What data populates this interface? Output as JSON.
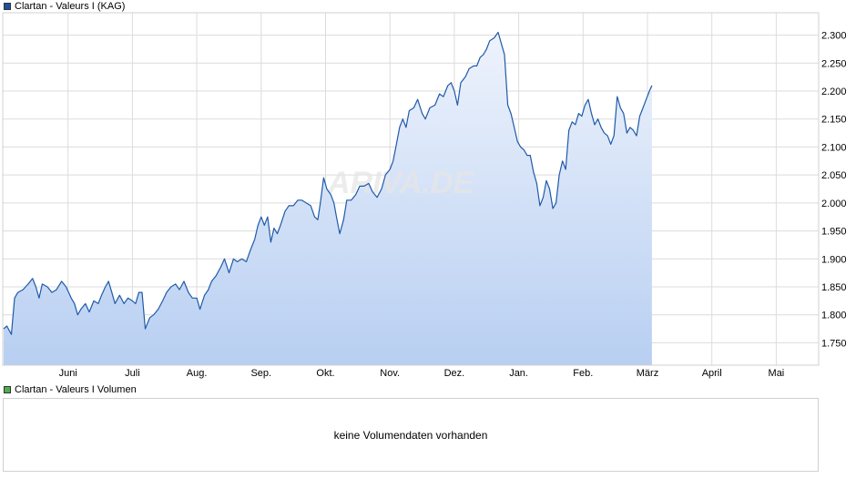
{
  "legend_price": {
    "label": "Clartan - Valeurs I (KAG)",
    "color": "#1f4e9e"
  },
  "legend_volume": {
    "label": "Clartan - Valeurs I Volumen",
    "color": "#4caf50"
  },
  "watermark": "ARIVA.DE",
  "volume_message": "keine Volumendaten vorhanden",
  "colors": {
    "line": "#1f5aa8",
    "fill_top": "#eef3fc",
    "fill_bottom": "#b8cff2",
    "grid": "#dcdcdc"
  },
  "chart_data": {
    "type": "area",
    "title": "Clartan - Valeurs I (KAG)",
    "x_tick_labels": [
      "Juni",
      "Juli",
      "Aug.",
      "Sep.",
      "Okt.",
      "Nov.",
      "Dez.",
      "Jan.",
      "Feb.",
      "März",
      "April",
      "Mai"
    ],
    "y_tick_labels": [
      "2.300",
      "2.250",
      "2.200",
      "2.150",
      "2.100",
      "2.050",
      "2.000",
      "1.950",
      "1.900",
      "1.850",
      "1.800",
      "1.750"
    ],
    "ylim": [
      1.71,
      2.34
    ],
    "grid": true,
    "x_unit": "months since start of May",
    "series": [
      {
        "name": "Clartan - Valeurs I (KAG)",
        "points": [
          [
            0.0,
            1.775
          ],
          [
            0.05,
            1.78
          ],
          [
            0.12,
            1.765
          ],
          [
            0.17,
            1.83
          ],
          [
            0.22,
            1.84
          ],
          [
            0.3,
            1.845
          ],
          [
            0.38,
            1.855
          ],
          [
            0.45,
            1.865
          ],
          [
            0.5,
            1.85
          ],
          [
            0.55,
            1.83
          ],
          [
            0.6,
            1.855
          ],
          [
            0.68,
            1.85
          ],
          [
            0.75,
            1.84
          ],
          [
            0.82,
            1.845
          ],
          [
            0.9,
            1.86
          ],
          [
            0.97,
            1.85
          ],
          [
            1.05,
            1.83
          ],
          [
            1.1,
            1.82
          ],
          [
            1.15,
            1.8
          ],
          [
            1.2,
            1.81
          ],
          [
            1.27,
            1.82
          ],
          [
            1.33,
            1.805
          ],
          [
            1.4,
            1.825
          ],
          [
            1.47,
            1.82
          ],
          [
            1.52,
            1.835
          ],
          [
            1.58,
            1.85
          ],
          [
            1.63,
            1.86
          ],
          [
            1.68,
            1.84
          ],
          [
            1.73,
            1.82
          ],
          [
            1.8,
            1.835
          ],
          [
            1.87,
            1.82
          ],
          [
            1.93,
            1.83
          ],
          [
            2.0,
            1.825
          ],
          [
            2.05,
            1.82
          ],
          [
            2.1,
            1.84
          ],
          [
            2.15,
            1.84
          ],
          [
            2.2,
            1.775
          ],
          [
            2.27,
            1.795
          ],
          [
            2.33,
            1.8
          ],
          [
            2.4,
            1.81
          ],
          [
            2.47,
            1.825
          ],
          [
            2.53,
            1.84
          ],
          [
            2.6,
            1.85
          ],
          [
            2.67,
            1.855
          ],
          [
            2.73,
            1.845
          ],
          [
            2.8,
            1.86
          ],
          [
            2.87,
            1.84
          ],
          [
            2.93,
            1.83
          ],
          [
            3.0,
            1.83
          ],
          [
            3.05,
            1.81
          ],
          [
            3.12,
            1.835
          ],
          [
            3.18,
            1.845
          ],
          [
            3.23,
            1.86
          ],
          [
            3.3,
            1.87
          ],
          [
            3.37,
            1.885
          ],
          [
            3.43,
            1.9
          ],
          [
            3.5,
            1.875
          ],
          [
            3.57,
            1.9
          ],
          [
            3.63,
            1.895
          ],
          [
            3.7,
            1.9
          ],
          [
            3.77,
            1.895
          ],
          [
            3.83,
            1.915
          ],
          [
            3.9,
            1.935
          ],
          [
            3.95,
            1.96
          ],
          [
            4.0,
            1.975
          ],
          [
            4.05,
            1.96
          ],
          [
            4.1,
            1.975
          ],
          [
            4.15,
            1.93
          ],
          [
            4.2,
            1.955
          ],
          [
            4.25,
            1.945
          ],
          [
            4.3,
            1.96
          ],
          [
            4.37,
            1.985
          ],
          [
            4.43,
            1.995
          ],
          [
            4.5,
            1.995
          ],
          [
            4.57,
            2.005
          ],
          [
            4.63,
            2.005
          ],
          [
            4.7,
            2.0
          ],
          [
            4.77,
            1.995
          ],
          [
            4.83,
            1.975
          ],
          [
            4.88,
            1.97
          ],
          [
            4.92,
            2.0
          ],
          [
            4.97,
            2.045
          ],
          [
            5.02,
            2.025
          ],
          [
            5.08,
            2.015
          ],
          [
            5.13,
            2.0
          ],
          [
            5.17,
            1.975
          ],
          [
            5.22,
            1.945
          ],
          [
            5.28,
            1.97
          ],
          [
            5.33,
            2.005
          ],
          [
            5.4,
            2.005
          ],
          [
            5.47,
            2.015
          ],
          [
            5.53,
            2.03
          ],
          [
            5.6,
            2.03
          ],
          [
            5.67,
            2.035
          ],
          [
            5.73,
            2.02
          ],
          [
            5.8,
            2.01
          ],
          [
            5.87,
            2.025
          ],
          [
            5.93,
            2.05
          ],
          [
            6.0,
            2.06
          ],
          [
            6.05,
            2.075
          ],
          [
            6.1,
            2.105
          ],
          [
            6.15,
            2.135
          ],
          [
            6.2,
            2.15
          ],
          [
            6.25,
            2.135
          ],
          [
            6.3,
            2.165
          ],
          [
            6.37,
            2.17
          ],
          [
            6.43,
            2.185
          ],
          [
            6.5,
            2.16
          ],
          [
            6.55,
            2.15
          ],
          [
            6.62,
            2.17
          ],
          [
            6.7,
            2.175
          ],
          [
            6.77,
            2.195
          ],
          [
            6.83,
            2.19
          ],
          [
            6.9,
            2.21
          ],
          [
            6.95,
            2.215
          ],
          [
            7.0,
            2.2
          ],
          [
            7.05,
            2.175
          ],
          [
            7.1,
            2.215
          ],
          [
            7.17,
            2.225
          ],
          [
            7.23,
            2.24
          ],
          [
            7.3,
            2.245
          ],
          [
            7.35,
            2.245
          ],
          [
            7.4,
            2.26
          ],
          [
            7.45,
            2.265
          ],
          [
            7.5,
            2.275
          ],
          [
            7.55,
            2.29
          ],
          [
            7.62,
            2.295
          ],
          [
            7.68,
            2.305
          ],
          [
            7.73,
            2.285
          ],
          [
            7.78,
            2.265
          ],
          [
            7.83,
            2.175
          ],
          [
            7.88,
            2.16
          ],
          [
            7.93,
            2.135
          ],
          [
            7.98,
            2.11
          ],
          [
            8.03,
            2.1
          ],
          [
            8.08,
            2.095
          ],
          [
            8.13,
            2.085
          ],
          [
            8.18,
            2.085
          ],
          [
            8.23,
            2.055
          ],
          [
            8.28,
            2.035
          ],
          [
            8.33,
            1.995
          ],
          [
            8.38,
            2.01
          ],
          [
            8.43,
            2.04
          ],
          [
            8.48,
            2.025
          ],
          [
            8.53,
            1.99
          ],
          [
            8.58,
            2.0
          ],
          [
            8.63,
            2.05
          ],
          [
            8.68,
            2.075
          ],
          [
            8.73,
            2.06
          ],
          [
            8.78,
            2.13
          ],
          [
            8.83,
            2.145
          ],
          [
            8.88,
            2.14
          ],
          [
            8.93,
            2.16
          ],
          [
            8.98,
            2.155
          ],
          [
            9.03,
            2.175
          ],
          [
            9.08,
            2.185
          ],
          [
            9.13,
            2.16
          ],
          [
            9.18,
            2.14
          ],
          [
            9.23,
            2.15
          ],
          [
            9.28,
            2.135
          ],
          [
            9.33,
            2.125
          ],
          [
            9.38,
            2.12
          ],
          [
            9.43,
            2.105
          ],
          [
            9.48,
            2.12
          ],
          [
            9.53,
            2.19
          ],
          [
            9.58,
            2.17
          ],
          [
            9.63,
            2.16
          ],
          [
            9.68,
            2.125
          ],
          [
            9.73,
            2.135
          ],
          [
            9.78,
            2.13
          ],
          [
            9.83,
            2.12
          ],
          [
            9.88,
            2.155
          ],
          [
            9.93,
            2.17
          ],
          [
            9.98,
            2.185
          ],
          [
            10.03,
            2.2
          ],
          [
            10.07,
            2.21
          ]
        ]
      }
    ]
  }
}
